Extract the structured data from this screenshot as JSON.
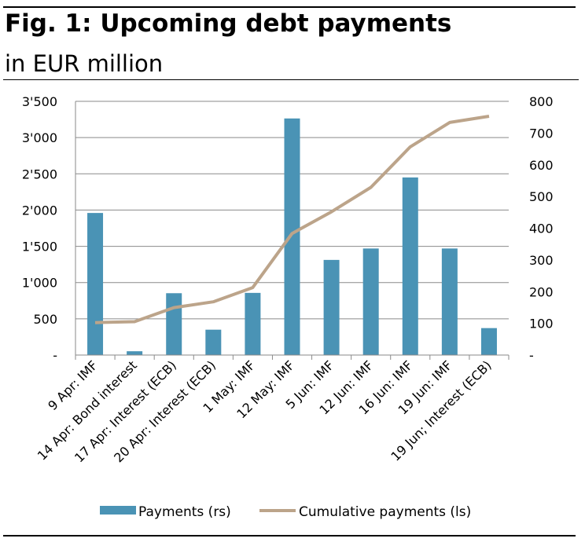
{
  "chart_data": {
    "type": "bar",
    "title": "Fig. 1: Upcoming debt payments",
    "subtitle": "in EUR million",
    "categories": [
      "9 Apr: IMF",
      "14 Apr: Bond interest",
      "17 Apr: Interest (ECB)",
      "20 Apr: Interest (ECB)",
      "1 May: IMF",
      "12 May: IMF",
      "5 Jun: IMF",
      "12 Jun: IMF",
      "16 Jun: IMF",
      "19 Jun: IMF",
      "19 Jun; Interest (ECB)"
    ],
    "series": [
      {
        "name": "Payments (rs)",
        "type": "bar",
        "axis": "right",
        "values": [
          448,
          12,
          195,
          80,
          196,
          746,
          300,
          336,
          560,
          336,
          85
        ]
      },
      {
        "name": "Cumulative payments (ls)",
        "type": "line",
        "axis": "left",
        "values": [
          448,
          460,
          655,
          735,
          931,
          1677,
          1977,
          2313,
          2873,
          3209,
          3294
        ]
      }
    ],
    "left_axis": {
      "ylim": [
        0,
        3500
      ],
      "ticks": [
        "-",
        "500",
        "1'000",
        "1'500",
        "2'000",
        "2'500",
        "3'000",
        "3'500"
      ]
    },
    "right_axis": {
      "ylim": [
        0,
        800
      ],
      "ticks": [
        "-",
        "100",
        "200",
        "300",
        "400",
        "500",
        "600",
        "700",
        "800"
      ]
    },
    "colors": {
      "bar": "#4a93b5",
      "line": "#bca48a",
      "grid": "#8a8a8a"
    },
    "grid": true,
    "legend": "bottom"
  }
}
